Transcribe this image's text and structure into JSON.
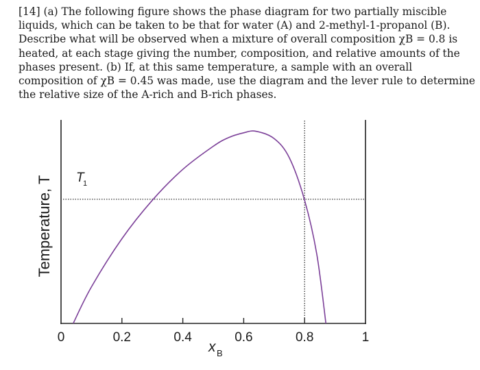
{
  "question": {
    "lines": [
      "[14] (a) The following figure shows the phase diagram for two partially miscible",
      "liquids, which can be taken to be that for water (A) and 2-methyl-1-propanol (B).",
      "Describe what will be observed when a mixture of overall composition χB = 0.8 is",
      "heated, at each stage giving the number, composition, and relative amounts of the",
      "phases present.  (b) If, at this same temperature, a sample with an overall",
      "composition of χB = 0.45 was made, use the diagram and the lever rule to determine",
      "the relative size of the A-rich and B-rich phases."
    ]
  },
  "chart_data": {
    "type": "line",
    "title": "",
    "xlabel": "x",
    "xlabel_subscript": "B",
    "ylabel": "Temperature, T",
    "xlim": [
      0,
      1
    ],
    "xticks": [
      0,
      0.2,
      0.4,
      0.6,
      0.8,
      1
    ],
    "xtick_labels": [
      "0",
      "0.2",
      "0.4",
      "0.6",
      "0.8",
      "1"
    ],
    "ylim": [
      0,
      1
    ],
    "yticks": [],
    "grid": false,
    "series": [
      {
        "color": "#7b3f98",
        "x": [
          0.04,
          0.1,
          0.2,
          0.3,
          0.4,
          0.5,
          0.55,
          0.6,
          0.64,
          0.7,
          0.75,
          0.8,
          0.84,
          0.87
        ],
        "y": [
          0.0,
          0.19,
          0.44,
          0.64,
          0.8,
          0.92,
          0.965,
          0.99,
          0.998,
          0.96,
          0.86,
          0.64,
          0.36,
          0.0
        ]
      }
    ],
    "reference_lines": {
      "T1_label": "T",
      "T1_subscript": "1",
      "T1_level": 0.645,
      "vertical_x": 0.8
    }
  }
}
